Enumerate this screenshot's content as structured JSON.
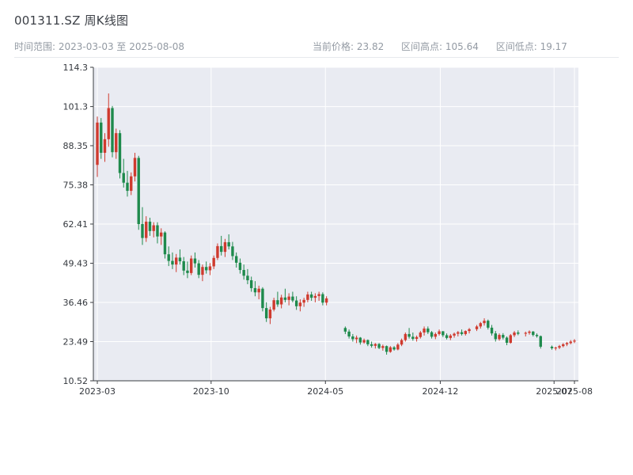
{
  "header": {
    "title": "001311.SZ 周K线图",
    "time_range": "时间范围: 2023-03-03 至 2025-08-08",
    "current_price": "当前价格: 23.82",
    "range_high": "区间高点: 105.64",
    "range_low": "区间低点: 19.17"
  },
  "chart_data": {
    "type": "candlestick",
    "title": "001311.SZ 周K线图",
    "interval": "weekly",
    "x_range": [
      "2023-03-03",
      "2025-08-08"
    ],
    "ylim": [
      10.52,
      114.3
    ],
    "grid": true,
    "stats": {
      "current_price": 23.82,
      "range_high": 105.64,
      "range_low": 19.17
    },
    "colors": {
      "up": "#cf3a2e",
      "down": "#1e8a4c",
      "plot_bg": "#e9ebf2",
      "grid": "#ffffff",
      "axis": "#3a3d42"
    },
    "y_ticks": [
      {
        "label": "114.3",
        "value": 114.3
      },
      {
        "label": "101.3",
        "value": 101.3
      },
      {
        "label": "88.35",
        "value": 88.35
      },
      {
        "label": "75.38",
        "value": 75.38
      },
      {
        "label": "62.41",
        "value": 62.41
      },
      {
        "label": "49.43",
        "value": 49.43
      },
      {
        "label": "36.46",
        "value": 36.46
      },
      {
        "label": "23.49",
        "value": 23.49
      },
      {
        "label": "10.52",
        "value": 10.52
      }
    ],
    "x_ticks": [
      {
        "label": "2023-03",
        "date": "2023-03-03"
      },
      {
        "label": "2023-10",
        "date": "2023-10-01"
      },
      {
        "label": "2024-05",
        "date": "2024-05-01"
      },
      {
        "label": "2024-12",
        "date": "2024-12-01"
      },
      {
        "label": "2025-07",
        "date": "2025-07-01"
      },
      {
        "label": "2025-08",
        "date": "2025-08-08"
      }
    ],
    "candle_format": [
      "date",
      "open",
      "high",
      "low",
      "close"
    ],
    "candles": [
      [
        "2023-03-03",
        82,
        98,
        78,
        96
      ],
      [
        "2023-03-10",
        96,
        97.5,
        84,
        86
      ],
      [
        "2023-03-17",
        86,
        92.5,
        83,
        90.5
      ],
      [
        "2023-03-24",
        90.5,
        105.64,
        88,
        100.8
      ],
      [
        "2023-03-31",
        100.8,
        101.5,
        84.5,
        86.2
      ],
      [
        "2023-04-07",
        86.2,
        94,
        84,
        92.5
      ],
      [
        "2023-04-14",
        92.5,
        93.5,
        77.5,
        79.3
      ],
      [
        "2023-04-21",
        79.3,
        84,
        74.5,
        76.1
      ],
      [
        "2023-04-28",
        76.1,
        80,
        71.5,
        73.4
      ],
      [
        "2023-05-05",
        73.4,
        79.5,
        72,
        78.2
      ],
      [
        "2023-05-12",
        78.2,
        86,
        76.5,
        84.3
      ],
      [
        "2023-05-19",
        84.3,
        85,
        60.5,
        62.4
      ],
      [
        "2023-05-26",
        62.4,
        68,
        55.5,
        57.8
      ],
      [
        "2023-06-02",
        57.8,
        65,
        56.5,
        63.2
      ],
      [
        "2023-06-09",
        63.2,
        64.5,
        58.5,
        60.1
      ],
      [
        "2023-06-16",
        60.1,
        63,
        58,
        62
      ],
      [
        "2023-06-23",
        62,
        63,
        56,
        58.3
      ],
      [
        "2023-06-30",
        58.3,
        61,
        55.5,
        59.6
      ],
      [
        "2023-07-07",
        59.6,
        60,
        51,
        52.4
      ],
      [
        "2023-07-14",
        52.4,
        55,
        48.5,
        50.2
      ],
      [
        "2023-07-21",
        50.2,
        53,
        47.5,
        49
      ],
      [
        "2023-07-28",
        49,
        52.5,
        46.5,
        51.3
      ],
      [
        "2023-08-04",
        51.3,
        54,
        49,
        50.1
      ],
      [
        "2023-08-11",
        50.1,
        51.5,
        45.5,
        47
      ],
      [
        "2023-08-18",
        47,
        50,
        44.5,
        46.2
      ],
      [
        "2023-08-25",
        46.2,
        52,
        45.5,
        51
      ],
      [
        "2023-09-01",
        51,
        53,
        48,
        49.4
      ],
      [
        "2023-09-08",
        49.4,
        50.5,
        44.5,
        45.6
      ],
      [
        "2023-09-15",
        45.6,
        49,
        43.5,
        48.2
      ],
      [
        "2023-09-22",
        48.2,
        50,
        46,
        47.1
      ],
      [
        "2023-09-29",
        47.1,
        49.5,
        45.5,
        48.4
      ],
      [
        "2023-10-06",
        48.4,
        52,
        47.5,
        51.2
      ],
      [
        "2023-10-13",
        51.2,
        56,
        50.5,
        55.1
      ],
      [
        "2023-10-20",
        55.1,
        58.5,
        52,
        53.2
      ],
      [
        "2023-10-27",
        53.2,
        57.5,
        51.5,
        56.4
      ],
      [
        "2023-11-03",
        56.4,
        59,
        54,
        55
      ],
      [
        "2023-11-10",
        55,
        56.5,
        50.5,
        51.8
      ],
      [
        "2023-11-17",
        51.8,
        53,
        48,
        49.6
      ],
      [
        "2023-11-24",
        49.6,
        51,
        46,
        47.2
      ],
      [
        "2023-12-01",
        47.2,
        49,
        44,
        45.3
      ],
      [
        "2023-12-08",
        45.3,
        47.5,
        42.5,
        43.8
      ],
      [
        "2023-12-15",
        43.8,
        45,
        40,
        41.2
      ],
      [
        "2023-12-22",
        41.2,
        43.5,
        38.5,
        39.8
      ],
      [
        "2023-12-29",
        39.8,
        42,
        37.5,
        41
      ],
      [
        "2024-01-05",
        41,
        41.5,
        33.5,
        34.6
      ],
      [
        "2024-01-12",
        34.6,
        36.5,
        30,
        31.2
      ],
      [
        "2024-01-19",
        31.2,
        35,
        29.3,
        34.1
      ],
      [
        "2024-01-26",
        34.1,
        38,
        33.5,
        37.2
      ],
      [
        "2024-02-02",
        37.2,
        40,
        35,
        35.8
      ],
      [
        "2024-02-09",
        35.8,
        39,
        34.5,
        38.1
      ],
      [
        "2024-02-16",
        38.1,
        41,
        36.5,
        37.3
      ],
      [
        "2024-02-23",
        37.3,
        39.5,
        35.5,
        38.4
      ],
      [
        "2024-03-01",
        38.4,
        40,
        36.5,
        37.1
      ],
      [
        "2024-03-08",
        37.1,
        38.5,
        34,
        35.2
      ],
      [
        "2024-03-15",
        35.2,
        37.5,
        33.5,
        36.4
      ],
      [
        "2024-03-22",
        36.4,
        38,
        35,
        37.3
      ],
      [
        "2024-03-29",
        37.3,
        40,
        36.5,
        39.1
      ],
      [
        "2024-04-05",
        39.1,
        40,
        37,
        38
      ],
      [
        "2024-04-12",
        38,
        39.5,
        36.5,
        38.6
      ],
      [
        "2024-04-19",
        38.6,
        40,
        37,
        39.2
      ],
      [
        "2024-04-26",
        39.2,
        39.8,
        35.5,
        36.4
      ],
      [
        "2024-05-03",
        36.4,
        38.5,
        35.5,
        37.8
      ],
      [
        "2024-06-07",
        28,
        28.5,
        26,
        26.8
      ],
      [
        "2024-06-14",
        26.8,
        27.5,
        24.5,
        25.2
      ],
      [
        "2024-06-21",
        25.2,
        26,
        23.5,
        24.3
      ],
      [
        "2024-06-28",
        24.3,
        25.5,
        23,
        24.8
      ],
      [
        "2024-07-05",
        24.8,
        25,
        22.5,
        23.2
      ],
      [
        "2024-07-12",
        23.2,
        24.5,
        22.8,
        24
      ],
      [
        "2024-07-19",
        24,
        24.2,
        22,
        22.6
      ],
      [
        "2024-07-26",
        22.6,
        23.5,
        21.5,
        22.1
      ],
      [
        "2024-08-02",
        22.1,
        23,
        21.2,
        22.7
      ],
      [
        "2024-08-09",
        22.7,
        23,
        21,
        21.4
      ],
      [
        "2024-08-16",
        21.4,
        22.5,
        20.5,
        22
      ],
      [
        "2024-08-23",
        22,
        22.2,
        19.17,
        20.1
      ],
      [
        "2024-08-30",
        20.1,
        22,
        19.8,
        21.6
      ],
      [
        "2024-09-06",
        21.6,
        22,
        20.5,
        20.9
      ],
      [
        "2024-09-13",
        20.9,
        23,
        20.6,
        22.5
      ],
      [
        "2024-09-20",
        22.5,
        24.5,
        22,
        24
      ],
      [
        "2024-09-27",
        24,
        26.5,
        23.5,
        26
      ],
      [
        "2024-10-04",
        26,
        28,
        24.5,
        25.1
      ],
      [
        "2024-10-11",
        25.1,
        26.5,
        23.8,
        24.4
      ],
      [
        "2024-10-18",
        24.4,
        25.5,
        23.5,
        25
      ],
      [
        "2024-10-25",
        25,
        27,
        24.5,
        26.5
      ],
      [
        "2024-11-01",
        26.5,
        28.5,
        25.5,
        27.8
      ],
      [
        "2024-11-08",
        27.8,
        28.5,
        26,
        26.6
      ],
      [
        "2024-11-15",
        26.6,
        27,
        24.5,
        25.1
      ],
      [
        "2024-11-22",
        25.1,
        26.5,
        24.3,
        26
      ],
      [
        "2024-11-29",
        26,
        27.5,
        25.5,
        26.9
      ],
      [
        "2024-12-06",
        26.9,
        27,
        25,
        25.6
      ],
      [
        "2024-12-13",
        25.6,
        26.2,
        24.2,
        24.7
      ],
      [
        "2024-12-20",
        24.7,
        26,
        24,
        25.5
      ],
      [
        "2024-12-27",
        25.5,
        26.5,
        24.8,
        26.1
      ],
      [
        "2025-01-03",
        26.1,
        27,
        25.2,
        26.6
      ],
      [
        "2025-01-10",
        26.6,
        27.5,
        25.5,
        26
      ],
      [
        "2025-01-17",
        26,
        27.2,
        25.5,
        27
      ],
      [
        "2025-01-24",
        27,
        28,
        26.2,
        27.6
      ],
      [
        "2025-02-07",
        27.6,
        29,
        27,
        28.5
      ],
      [
        "2025-02-14",
        28.5,
        30,
        27.8,
        29.6
      ],
      [
        "2025-02-21",
        29.6,
        31.2,
        28.8,
        30.4
      ],
      [
        "2025-02-28",
        30.4,
        30.8,
        27.5,
        28.1
      ],
      [
        "2025-03-07",
        28.1,
        29,
        25.5,
        26.2
      ],
      [
        "2025-03-14",
        26.2,
        27,
        23.5,
        24.3
      ],
      [
        "2025-03-21",
        24.3,
        26.2,
        23.8,
        25.7
      ],
      [
        "2025-03-28",
        25.7,
        26.3,
        24.2,
        24.8
      ],
      [
        "2025-04-04",
        24.8,
        25.2,
        22.3,
        23.1
      ],
      [
        "2025-04-11",
        23.1,
        26,
        22.8,
        25.6
      ],
      [
        "2025-04-18",
        25.6,
        27,
        25,
        26.5
      ],
      [
        "2025-04-25",
        26.5,
        27.2,
        25.6,
        26.1
      ],
      [
        "2025-05-09",
        26.1,
        26.8,
        25.2,
        26.4
      ],
      [
        "2025-05-16",
        26.4,
        27.2,
        25.8,
        26.8
      ],
      [
        "2025-05-23",
        26.8,
        27,
        25.2,
        25.7
      ],
      [
        "2025-05-30",
        25.7,
        26.2,
        24.8,
        25.3
      ],
      [
        "2025-06-06",
        25.3,
        25.5,
        21.2,
        21.8
      ],
      [
        "2025-06-27",
        21.8,
        22.2,
        20.8,
        21.3
      ],
      [
        "2025-07-04",
        21.3,
        21.8,
        20.6,
        21.5
      ],
      [
        "2025-07-11",
        21.5,
        22.4,
        21,
        22
      ],
      [
        "2025-07-18",
        22,
        23,
        21.6,
        22.6
      ],
      [
        "2025-07-25",
        22.6,
        23.4,
        22,
        23
      ],
      [
        "2025-08-01",
        23,
        24,
        22.6,
        23.5
      ],
      [
        "2025-08-08",
        23.5,
        24.3,
        23,
        23.82
      ]
    ]
  }
}
